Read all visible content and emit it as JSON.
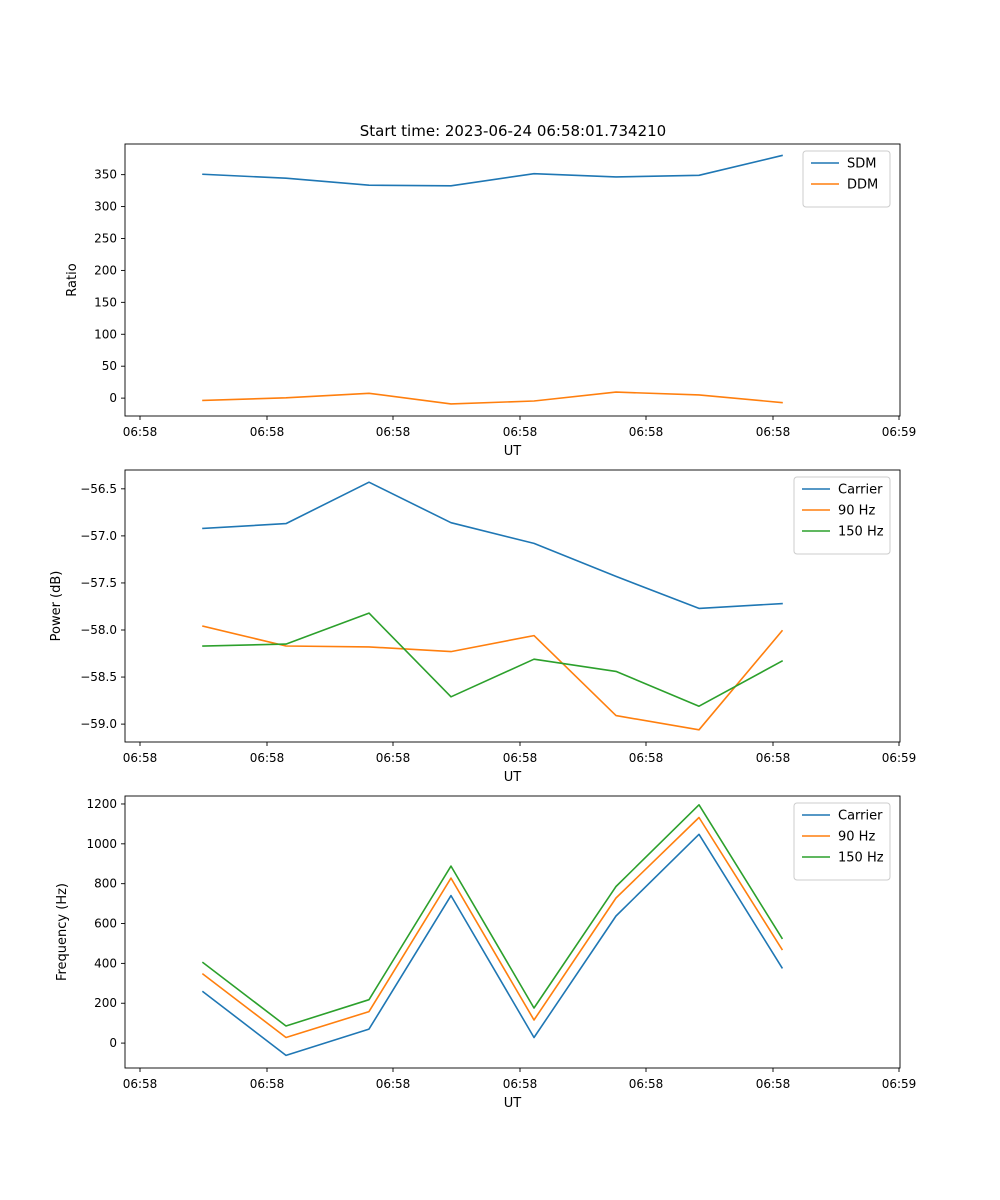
{
  "figure_title": "Start time: 2023-06-24 06:58:01.734210",
  "chart_data": [
    {
      "type": "line",
      "xlabel": "UT",
      "ylabel": "Ratio",
      "x_tick_labels": [
        "06:58",
        "06:58",
        "06:58",
        "06:58",
        "06:58",
        "06:58",
        "06:59"
      ],
      "yticks": [
        0,
        50,
        100,
        150,
        200,
        250,
        300,
        350
      ],
      "ylim": [
        -28,
        398
      ],
      "legend_position": "top-right",
      "series": [
        {
          "name": "SDM",
          "color": "#1f77b4",
          "values": [
            350.5,
            344.5,
            333.5,
            332.5,
            351.5,
            346.5,
            349,
            380
          ]
        },
        {
          "name": "DDM",
          "color": "#ff7f0e",
          "values": [
            -3.5,
            0.5,
            7.5,
            -9,
            -4.5,
            9.5,
            5,
            -7
          ]
        }
      ]
    },
    {
      "type": "line",
      "xlabel": "UT",
      "ylabel": "Power (dB)",
      "x_tick_labels": [
        "06:58",
        "06:58",
        "06:58",
        "06:58",
        "06:58",
        "06:58",
        "06:59"
      ],
      "yticks": [
        -59.0,
        -58.5,
        -58.0,
        -57.5,
        -57.0,
        -56.5
      ],
      "ylim": [
        -59.19,
        -56.3
      ],
      "legend_position": "top-right",
      "series": [
        {
          "name": "Carrier",
          "color": "#1f77b4",
          "values": [
            -56.92,
            -56.87,
            -56.43,
            -56.86,
            -57.08,
            -57.43,
            -57.77,
            -57.72
          ]
        },
        {
          "name": "90 Hz",
          "color": "#ff7f0e",
          "values": [
            -57.96,
            -58.17,
            -58.18,
            -58.23,
            -58.06,
            -58.91,
            -59.06,
            -58.01
          ]
        },
        {
          "name": "150 Hz",
          "color": "#2ca02c",
          "values": [
            -58.17,
            -58.15,
            -57.82,
            -58.71,
            -58.31,
            -58.44,
            -58.81,
            -58.33
          ]
        }
      ]
    },
    {
      "type": "line",
      "xlabel": "UT",
      "ylabel": "Frequency (Hz)",
      "x_tick_labels": [
        "06:58",
        "06:58",
        "06:58",
        "06:58",
        "06:58",
        "06:58",
        "06:59"
      ],
      "yticks": [
        0,
        200,
        400,
        600,
        800,
        1000,
        1200
      ],
      "ylim": [
        -125,
        1240
      ],
      "legend_position": "top-right",
      "series": [
        {
          "name": "Carrier",
          "color": "#1f77b4",
          "values": [
            258,
            -62,
            70,
            740,
            28,
            638,
            1048,
            378
          ]
        },
        {
          "name": "90 Hz",
          "color": "#ff7f0e",
          "values": [
            346,
            28,
            158,
            828,
            116,
            728,
            1132,
            470
          ]
        },
        {
          "name": "150 Hz",
          "color": "#2ca02c",
          "values": [
            404,
            86,
            218,
            888,
            176,
            786,
            1196,
            526
          ]
        }
      ]
    }
  ]
}
